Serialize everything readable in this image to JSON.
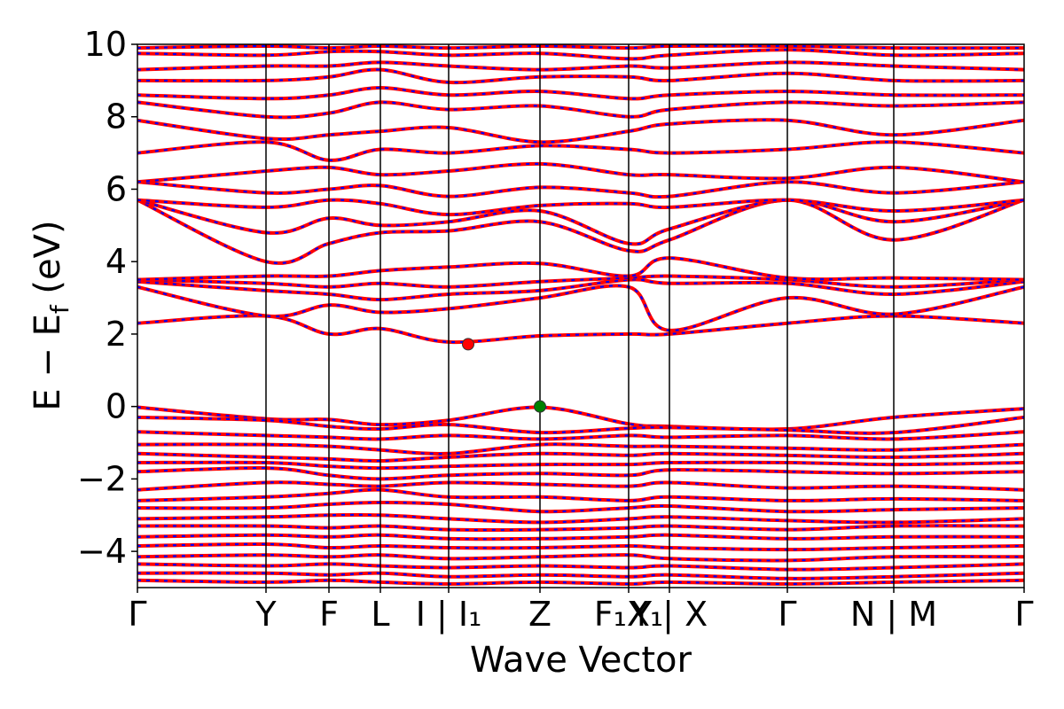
{
  "chart_data": {
    "type": "line",
    "xlabel": "Wave Vector",
    "ylabel": "E − E_f (eV)",
    "ylabel_parts": {
      "main": "E − E",
      "subscript": "f",
      "unit": " (eV)"
    },
    "ylim": [
      -5,
      10
    ],
    "yticks": [
      {
        "value": -4,
        "label": "−4"
      },
      {
        "value": -2,
        "label": "−2"
      },
      {
        "value": 0,
        "label": "0"
      },
      {
        "value": 2,
        "label": "2"
      },
      {
        "value": 4,
        "label": "4"
      },
      {
        "value": 6,
        "label": "6"
      },
      {
        "value": 8,
        "label": "8"
      },
      {
        "value": 10,
        "label": "10"
      }
    ],
    "grid": false,
    "legend": "none",
    "kpath_range": [
      0,
      1
    ],
    "high_symmetry_points": [
      {
        "k": 0.0,
        "label": "Γ"
      },
      {
        "k": 0.145,
        "label": "Y"
      },
      {
        "k": 0.216,
        "label": "F"
      },
      {
        "k": 0.274,
        "label": "L"
      },
      {
        "k": 0.351,
        "label": "I | I₁"
      },
      {
        "k": 0.454,
        "label": "Z"
      },
      {
        "k": 0.554,
        "label": "F₁X₁"
      },
      {
        "k": 0.6,
        "label": "Y | X"
      },
      {
        "k": 0.733,
        "label": "Γ"
      },
      {
        "k": 0.853,
        "label": "N | M"
      },
      {
        "k": 1.0,
        "label": "Γ"
      }
    ],
    "band_style": {
      "outer_color": "#ff0000",
      "inner_color": "#0000ff"
    },
    "band_edge_markers": [
      {
        "name": "CBM",
        "k": 0.373,
        "energy": 1.72,
        "color": "#ff0000"
      },
      {
        "name": "VBM",
        "k": 0.454,
        "energy": 0.0,
        "color": "#008000"
      }
    ],
    "series": [
      {
        "values": [
          -0.02,
          -0.34,
          -0.36,
          -0.5,
          -0.38,
          -0.02,
          -0.48,
          -0.55,
          -0.62,
          -0.3,
          -0.06
        ]
      },
      {
        "values": [
          -0.3,
          -0.38,
          -0.55,
          -0.62,
          -0.5,
          -0.72,
          -0.6,
          -0.58,
          -0.65,
          -0.72,
          -0.3
        ]
      },
      {
        "values": [
          -0.7,
          -0.8,
          -0.85,
          -0.9,
          -0.8,
          -0.9,
          -0.8,
          -0.85,
          -0.8,
          -0.9,
          -0.7
        ]
      },
      {
        "values": [
          -1.05,
          -1.05,
          -1.1,
          -1.2,
          -1.3,
          -1.05,
          -1.1,
          -1.1,
          -1.15,
          -1.2,
          -1.05
        ]
      },
      {
        "values": [
          -1.3,
          -1.4,
          -1.45,
          -1.5,
          -1.4,
          -1.3,
          -1.35,
          -1.3,
          -1.35,
          -1.4,
          -1.3
        ]
      },
      {
        "values": [
          -1.55,
          -1.55,
          -1.65,
          -1.7,
          -1.65,
          -1.6,
          -1.6,
          -1.55,
          -1.55,
          -1.6,
          -1.55
        ]
      },
      {
        "values": [
          -1.8,
          -1.7,
          -1.9,
          -2.0,
          -1.9,
          -1.85,
          -1.9,
          -1.75,
          -1.8,
          -1.85,
          -1.8
        ]
      },
      {
        "values": [
          -2.3,
          -2.1,
          -2.15,
          -2.2,
          -2.1,
          -2.15,
          -2.2,
          -2.1,
          -2.25,
          -2.2,
          -2.3
        ]
      },
      {
        "values": [
          -2.6,
          -2.5,
          -2.4,
          -2.3,
          -2.5,
          -2.5,
          -2.6,
          -2.5,
          -2.6,
          -2.55,
          -2.6
        ]
      },
      {
        "values": [
          -2.8,
          -2.8,
          -2.7,
          -2.65,
          -2.7,
          -2.9,
          -2.8,
          -2.75,
          -2.9,
          -2.85,
          -2.8
        ]
      },
      {
        "values": [
          -3.1,
          -3.05,
          -3.0,
          -3.0,
          -3.1,
          -3.2,
          -3.1,
          -3.05,
          -3.15,
          -3.2,
          -3.1
        ]
      },
      {
        "values": [
          -3.3,
          -3.3,
          -3.35,
          -3.3,
          -3.4,
          -3.4,
          -3.35,
          -3.3,
          -3.4,
          -3.3,
          -3.3
        ]
      },
      {
        "values": [
          -3.6,
          -3.55,
          -3.6,
          -3.55,
          -3.65,
          -3.65,
          -3.6,
          -3.55,
          -3.65,
          -3.6,
          -3.6
        ]
      },
      {
        "values": [
          -3.85,
          -3.8,
          -3.9,
          -3.85,
          -3.9,
          -3.9,
          -3.85,
          -3.9,
          -3.95,
          -3.9,
          -3.85
        ]
      },
      {
        "values": [
          -4.15,
          -4.1,
          -4.15,
          -4.1,
          -4.2,
          -4.15,
          -4.1,
          -4.2,
          -4.25,
          -4.15,
          -4.15
        ]
      },
      {
        "values": [
          -4.35,
          -4.4,
          -4.35,
          -4.4,
          -4.45,
          -4.4,
          -4.45,
          -4.4,
          -4.5,
          -4.45,
          -4.35
        ]
      },
      {
        "values": [
          -4.6,
          -4.6,
          -4.65,
          -4.6,
          -4.7,
          -4.65,
          -4.7,
          -4.65,
          -4.75,
          -4.7,
          -4.6
        ]
      },
      {
        "values": [
          -4.8,
          -4.85,
          -4.8,
          -4.85,
          -4.9,
          -4.85,
          -4.9,
          -4.85,
          -4.9,
          -4.85,
          -4.8
        ]
      },
      {
        "values": [
          2.3,
          2.5,
          2.0,
          2.15,
          1.78,
          1.95,
          2.0,
          2.0,
          2.3,
          2.5,
          2.3
        ]
      },
      {
        "values": [
          3.3,
          2.5,
          2.8,
          2.6,
          2.7,
          3.0,
          3.3,
          2.1,
          3.0,
          2.55,
          3.3
        ]
      },
      {
        "values": [
          3.45,
          3.2,
          3.1,
          2.95,
          3.1,
          3.2,
          3.5,
          3.4,
          3.4,
          3.1,
          3.45
        ]
      },
      {
        "values": [
          3.5,
          3.4,
          3.3,
          3.4,
          3.3,
          3.45,
          3.55,
          3.6,
          3.5,
          3.3,
          3.5
        ]
      },
      {
        "values": [
          3.5,
          3.6,
          3.6,
          3.75,
          3.85,
          3.95,
          3.6,
          4.1,
          3.55,
          3.55,
          3.5
        ]
      },
      {
        "values": [
          5.7,
          4.0,
          4.5,
          4.8,
          4.85,
          5.1,
          4.3,
          4.6,
          5.7,
          4.6,
          5.7
        ]
      },
      {
        "values": [
          5.7,
          4.8,
          5.2,
          5.0,
          5.1,
          5.4,
          4.5,
          4.9,
          5.7,
          5.1,
          5.7
        ]
      },
      {
        "values": [
          5.7,
          5.5,
          5.7,
          5.6,
          5.3,
          5.55,
          5.6,
          5.5,
          5.7,
          5.4,
          5.7
        ]
      },
      {
        "values": [
          6.2,
          5.9,
          6.0,
          6.1,
          5.8,
          6.05,
          5.9,
          5.8,
          6.2,
          5.9,
          6.2
        ]
      },
      {
        "values": [
          6.2,
          6.5,
          6.6,
          6.4,
          6.5,
          6.7,
          6.4,
          6.4,
          6.3,
          6.6,
          6.2
        ]
      },
      {
        "values": [
          7.0,
          7.3,
          6.8,
          7.1,
          7.0,
          7.2,
          7.1,
          7.0,
          7.1,
          7.3,
          7.0
        ]
      },
      {
        "values": [
          7.9,
          7.4,
          7.5,
          7.6,
          7.7,
          7.3,
          7.6,
          7.8,
          7.9,
          7.5,
          7.9
        ]
      },
      {
        "values": [
          8.4,
          8.0,
          8.1,
          8.4,
          8.2,
          8.3,
          8.0,
          8.2,
          8.4,
          8.3,
          8.4
        ]
      },
      {
        "values": [
          8.6,
          8.5,
          8.6,
          8.8,
          8.6,
          8.7,
          8.5,
          8.6,
          8.7,
          8.6,
          8.6
        ]
      },
      {
        "values": [
          9.0,
          9.0,
          9.1,
          9.3,
          8.95,
          9.1,
          9.1,
          9.0,
          9.2,
          9.0,
          9.0
        ]
      },
      {
        "values": [
          9.3,
          9.4,
          9.4,
          9.5,
          9.4,
          9.3,
          9.4,
          9.35,
          9.5,
          9.4,
          9.3
        ]
      },
      {
        "values": [
          9.75,
          9.7,
          9.8,
          9.8,
          9.7,
          9.75,
          9.6,
          9.7,
          9.85,
          9.7,
          9.75
        ]
      },
      {
        "values": [
          9.9,
          9.95,
          9.9,
          9.95,
          9.9,
          9.95,
          9.9,
          9.95,
          9.95,
          9.9,
          9.9
        ]
      }
    ]
  }
}
